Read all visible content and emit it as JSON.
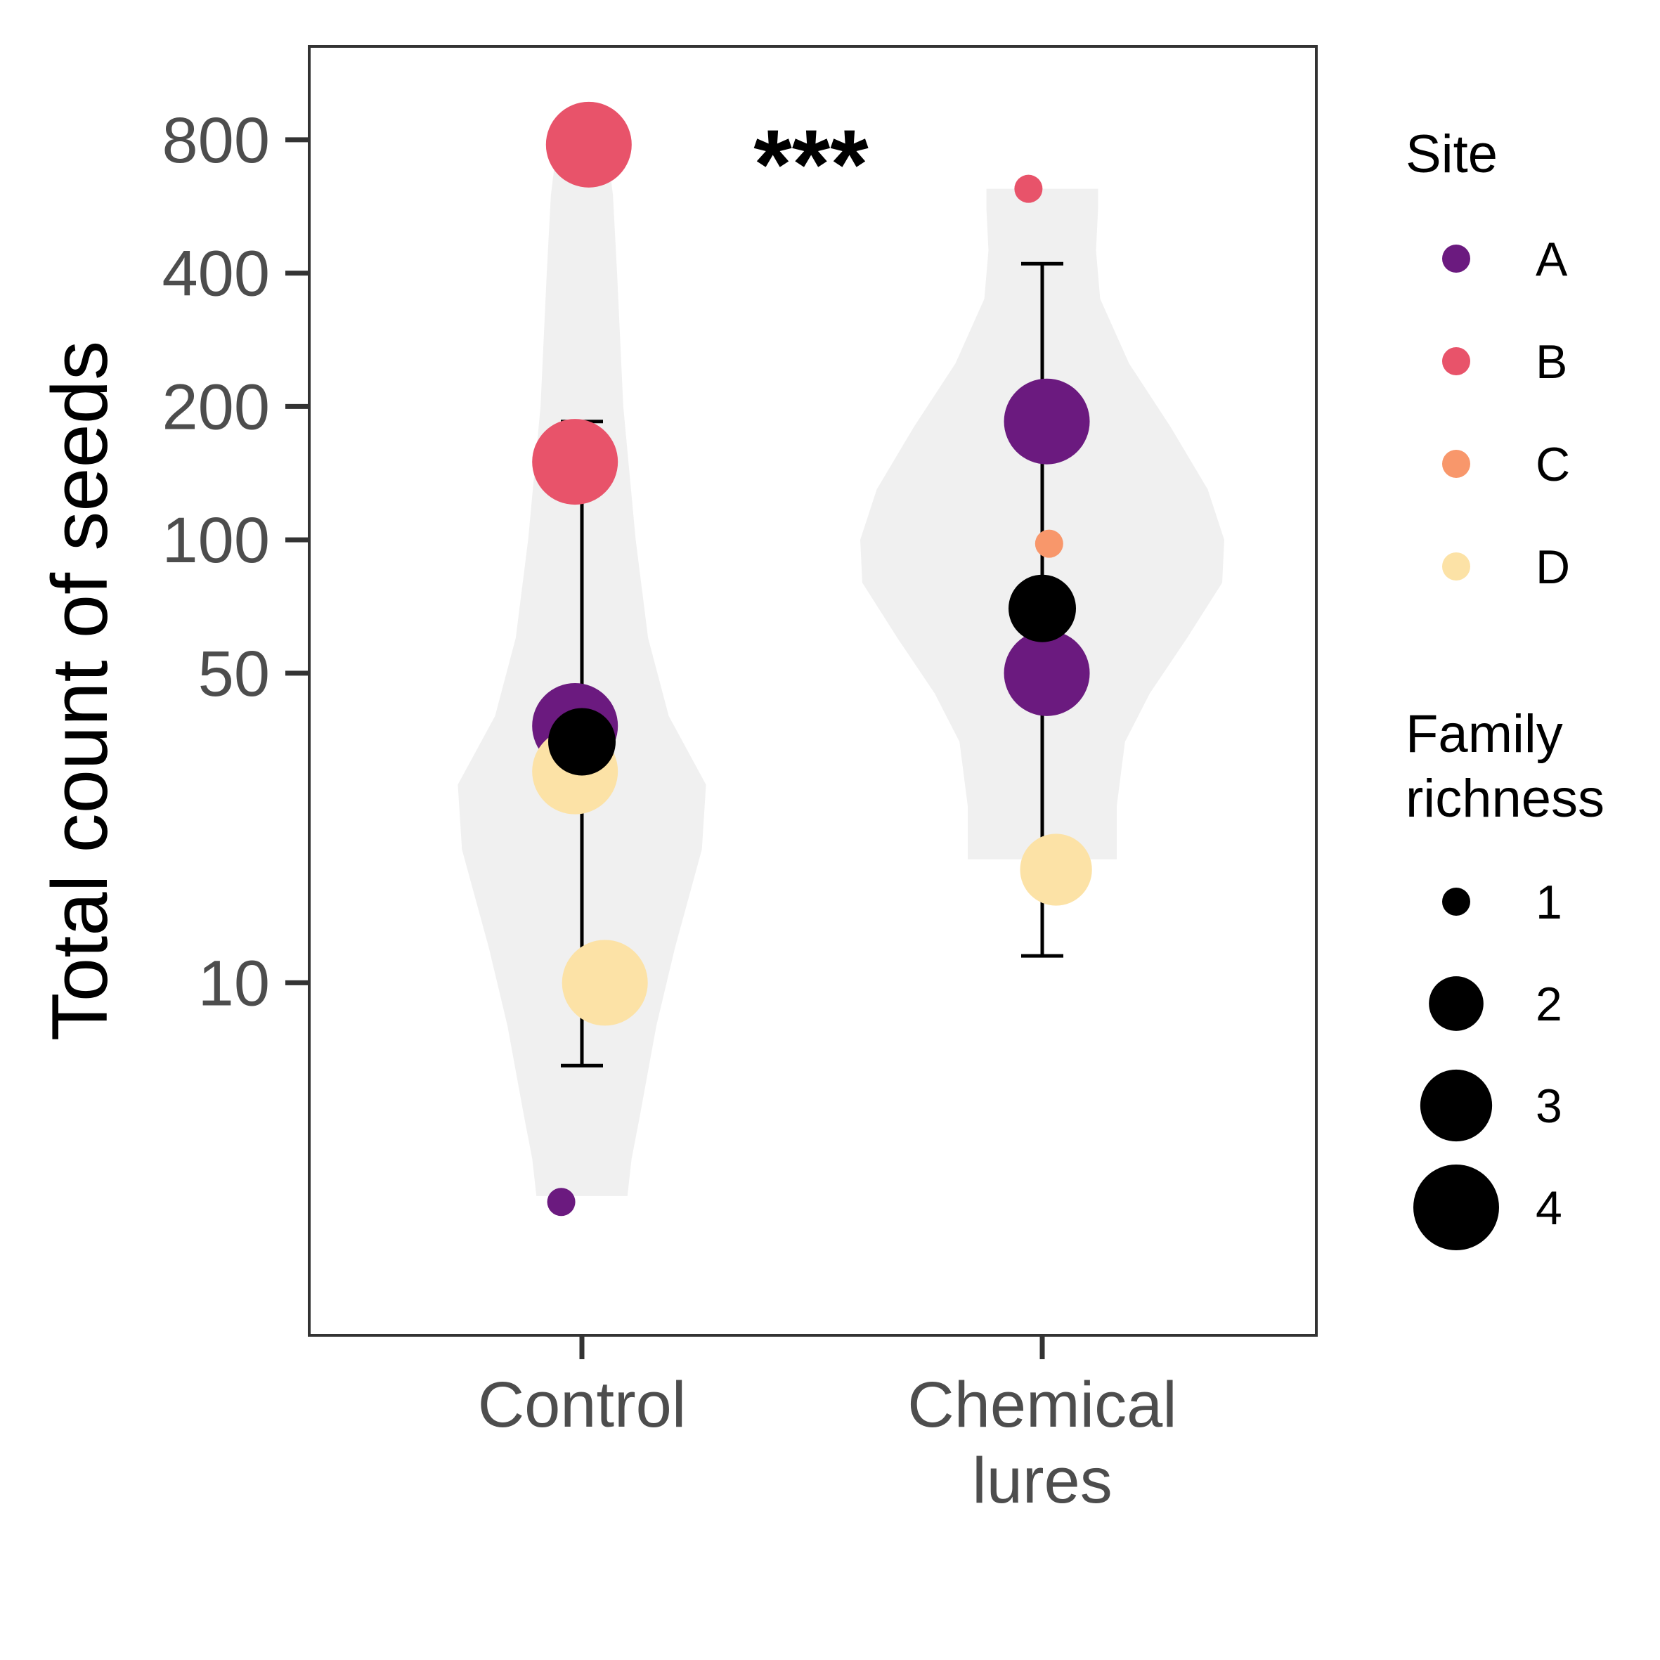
{
  "chart_data": {
    "type": "violin-dotplot",
    "ylabel": "Total count of seeds",
    "xlabel": "",
    "y_scale": "log",
    "ylim": [
      1.6,
      1300
    ],
    "y_ticks": [
      10,
      50,
      100,
      200,
      400,
      800
    ],
    "y_tick_labels": [
      "10",
      "50",
      "100",
      "200",
      "400",
      "800"
    ],
    "categories": [
      {
        "key": "control",
        "label_lines": [
          "Control"
        ]
      },
      {
        "key": "chemical",
        "label_lines": [
          "Chemical",
          "lures"
        ]
      }
    ],
    "significance": "***",
    "violins": [
      {
        "category": "control",
        "shape": [
          [
            780,
            0.12
          ],
          [
            600,
            0.15
          ],
          [
            400,
            0.17
          ],
          [
            200,
            0.2
          ],
          [
            100,
            0.26
          ],
          [
            60,
            0.32
          ],
          [
            40,
            0.42
          ],
          [
            28,
            0.6
          ],
          [
            20,
            0.58
          ],
          [
            12,
            0.45
          ],
          [
            8,
            0.36
          ],
          [
            5,
            0.28
          ],
          [
            4,
            0.24
          ],
          [
            3.3,
            0.22
          ]
        ]
      },
      {
        "category": "chemical",
        "shape": [
          [
            620,
            0.27
          ],
          [
            560,
            0.27
          ],
          [
            450,
            0.26
          ],
          [
            350,
            0.28
          ],
          [
            250,
            0.42
          ],
          [
            180,
            0.62
          ],
          [
            130,
            0.8
          ],
          [
            100,
            0.88
          ],
          [
            80,
            0.87
          ],
          [
            60,
            0.7
          ],
          [
            45,
            0.52
          ],
          [
            35,
            0.4
          ],
          [
            25,
            0.36
          ],
          [
            19,
            0.36
          ]
        ]
      }
    ],
    "points": [
      {
        "category": "control",
        "site": "B",
        "richness": 4,
        "y": 780,
        "jitter": 0.03
      },
      {
        "category": "control",
        "site": "B",
        "richness": 4,
        "y": 150,
        "jitter": -0.03
      },
      {
        "category": "control",
        "site": "A",
        "richness": 4,
        "y": 38,
        "jitter": -0.03
      },
      {
        "category": "control",
        "site": "D",
        "richness": 4,
        "y": 30,
        "jitter": -0.03
      },
      {
        "category": "control",
        "site": "D",
        "richness": 4,
        "y": 10,
        "jitter": 0.1
      },
      {
        "category": "control",
        "site": "A",
        "richness": 1,
        "y": 3.2,
        "jitter": -0.09
      },
      {
        "category": "chemical",
        "site": "B",
        "richness": 1,
        "y": 620,
        "jitter": -0.06
      },
      {
        "category": "chemical",
        "site": "A",
        "richness": 4,
        "y": 185,
        "jitter": 0.02
      },
      {
        "category": "chemical",
        "site": "C",
        "richness": 1,
        "y": 98,
        "jitter": 0.03
      },
      {
        "category": "chemical",
        "site": "A",
        "richness": 4,
        "y": 50,
        "jitter": 0.02
      },
      {
        "category": "chemical",
        "site": "D",
        "richness": 3,
        "y": 18,
        "jitter": 0.06
      }
    ],
    "summary": [
      {
        "category": "control",
        "mean": 35,
        "lower": 6.5,
        "upper": 185
      },
      {
        "category": "chemical",
        "mean": 70,
        "lower": 11.5,
        "upper": 420
      }
    ],
    "legend_site": {
      "title": "Site",
      "items": [
        {
          "label": "A",
          "color": "#6B1A7F"
        },
        {
          "label": "B",
          "color": "#E8536A"
        },
        {
          "label": "C",
          "color": "#F8976B"
        },
        {
          "label": "D",
          "color": "#FCE2A6"
        }
      ]
    },
    "legend_richness": {
      "title_lines": [
        "Family",
        "richness"
      ],
      "items": [
        {
          "label": "1",
          "value": 1
        },
        {
          "label": "2",
          "value": 2
        },
        {
          "label": "3",
          "value": 3
        },
        {
          "label": "4",
          "value": 4
        }
      ]
    },
    "legend_position": "right",
    "grid": false,
    "colors": {
      "violin_fill": "#F0F0F0",
      "summary": "#000000",
      "panel_border": "#333333",
      "axis_tick": "#333333"
    }
  }
}
